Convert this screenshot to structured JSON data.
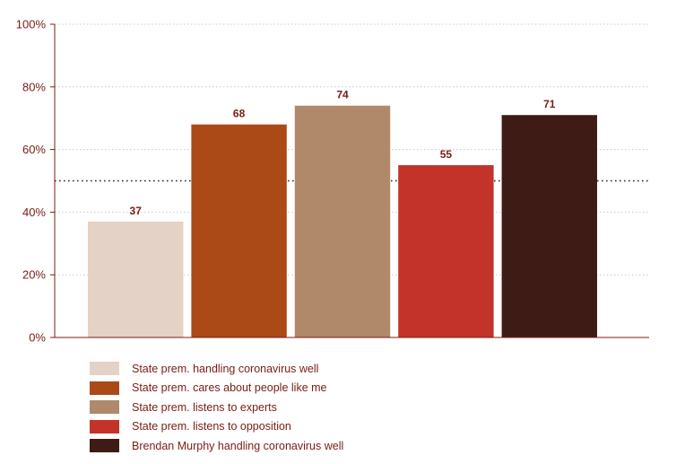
{
  "chart_data": {
    "type": "bar",
    "categories": [
      "State prem. handling coronavirus well",
      "State prem. cares about people like me",
      "State prem. listens to experts",
      "State prem. listens to opposition",
      "Brendan Murphy handling coronavirus well"
    ],
    "values": [
      37,
      68,
      74,
      55,
      71
    ],
    "value_labels": [
      "37",
      "68",
      "74",
      "55",
      "71"
    ],
    "colors": [
      "#e3d2c5",
      "#ab4a17",
      "#b0896a",
      "#c3332a",
      "#3e1b14"
    ],
    "ylim": [
      0,
      100
    ],
    "yticks": [
      0,
      20,
      40,
      60,
      80,
      100
    ],
    "ytick_labels": [
      "0%",
      "20%",
      "40%",
      "60%",
      "80%",
      "100%"
    ],
    "reference_line": 50,
    "grid": true,
    "legend_position": "bottom",
    "title": "",
    "xlabel": "",
    "ylabel": ""
  }
}
